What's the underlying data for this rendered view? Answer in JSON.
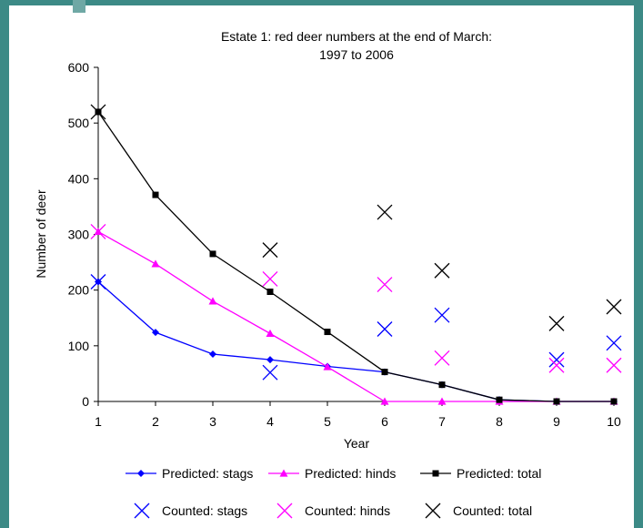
{
  "chart_data": {
    "type": "line",
    "title_line1": "Estate 1: red deer numbers at the end of March:",
    "title_line2": "1997 to 2006",
    "xlabel": "Year",
    "ylabel": "Number of deer",
    "x": [
      1,
      2,
      3,
      4,
      5,
      6,
      7,
      8,
      9,
      10
    ],
    "xlim": [
      1,
      10
    ],
    "ylim": [
      0,
      600
    ],
    "yticks": [
      0,
      100,
      200,
      300,
      400,
      500,
      600
    ],
    "legend_position": "bottom",
    "grid": false,
    "series": [
      {
        "name": "Predicted: stags",
        "kind": "line",
        "marker": "diamond",
        "color": "#0000ff",
        "values": [
          215,
          124,
          85,
          75,
          63,
          53,
          30,
          3,
          0,
          0
        ]
      },
      {
        "name": "Predicted: hinds",
        "kind": "line",
        "marker": "triangle",
        "color": "#ff00ff",
        "values": [
          305,
          247,
          180,
          122,
          62,
          0,
          0,
          0,
          0,
          0
        ]
      },
      {
        "name": "Predicted: total",
        "kind": "line",
        "marker": "square",
        "color": "#000000",
        "values": [
          520,
          371,
          265,
          197,
          125,
          53,
          30,
          3,
          0,
          0
        ]
      },
      {
        "name": "Counted: stags",
        "kind": "scatter",
        "marker": "x",
        "color": "#0000ff",
        "points": [
          [
            1,
            215
          ],
          [
            4,
            52
          ],
          [
            6,
            130
          ],
          [
            7,
            155
          ],
          [
            9,
            75
          ],
          [
            10,
            105
          ]
        ]
      },
      {
        "name": "Counted: hinds",
        "kind": "scatter",
        "marker": "x",
        "color": "#ff00ff",
        "points": [
          [
            1,
            305
          ],
          [
            4,
            220
          ],
          [
            6,
            210
          ],
          [
            7,
            78
          ],
          [
            9,
            65
          ],
          [
            10,
            65
          ]
        ]
      },
      {
        "name": "Counted: total",
        "kind": "scatter",
        "marker": "x",
        "color": "#000000",
        "points": [
          [
            1,
            520
          ],
          [
            4,
            272
          ],
          [
            6,
            340
          ],
          [
            7,
            235
          ],
          [
            9,
            140
          ],
          [
            10,
            170
          ]
        ]
      }
    ]
  }
}
